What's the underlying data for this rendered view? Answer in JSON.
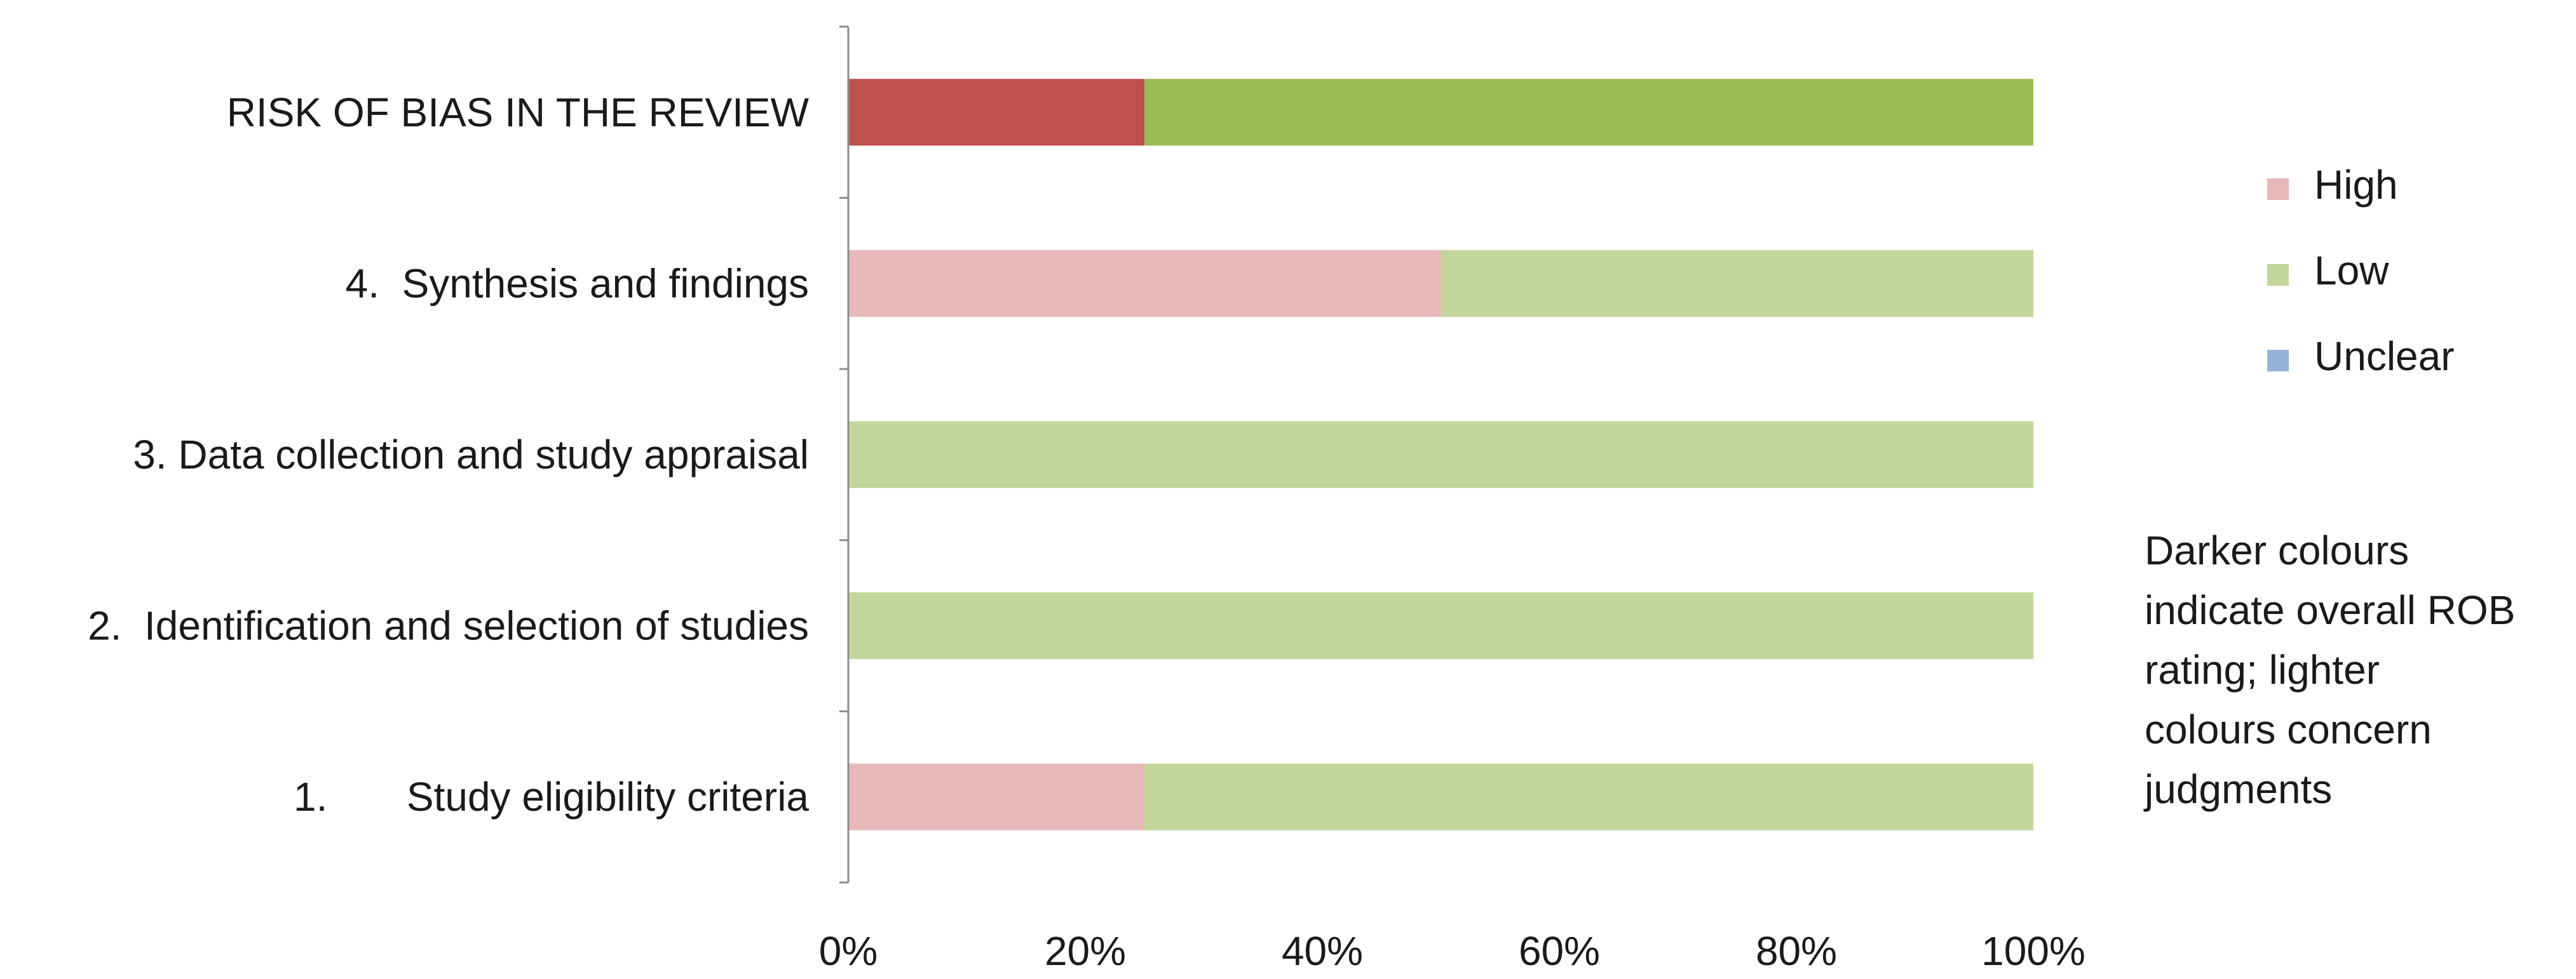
{
  "chart_data": {
    "type": "bar",
    "orientation": "horizontal",
    "stacked": true,
    "normalized_percent": true,
    "categories": [
      "RISK OF BIAS IN THE REVIEW",
      "4.  Synthesis and findings",
      "3. Data collection and study appraisal",
      "2.  Identification and selection of studies",
      "1.       Study eligibility criteria"
    ],
    "segments": [
      [
        {
          "rating": "High",
          "value": 25,
          "color": "#c0504d"
        },
        {
          "rating": "Low",
          "value": 75,
          "color": "#9bbb59"
        }
      ],
      [
        {
          "rating": "High",
          "value": 50,
          "color": "#e6b9b8"
        },
        {
          "rating": "Low",
          "value": 50,
          "color": "#c3d69b"
        }
      ],
      [
        {
          "rating": "Low",
          "value": 100,
          "color": "#c3d69b"
        }
      ],
      [
        {
          "rating": "Low",
          "value": 100,
          "color": "#c3d69b"
        }
      ],
      [
        {
          "rating": "High",
          "value": 25,
          "color": "#e6b9b8"
        },
        {
          "rating": "Low",
          "value": 75,
          "color": "#c3d69b"
        }
      ]
    ],
    "x_ticks": [
      "0%",
      "20%",
      "40%",
      "60%",
      "80%",
      "100%"
    ],
    "xlim": [
      0,
      100
    ],
    "legend": {
      "placement": "right",
      "items": [
        {
          "label": "High",
          "color": "#e6b9b8"
        },
        {
          "label": "Low",
          "color": "#c3d69b"
        },
        {
          "label": "Unclear",
          "color": "#95b3d7"
        }
      ]
    },
    "annotation_lines": [
      "Darker colours",
      "indicate overall ROB",
      "rating;  lighter",
      "colours concern",
      "judgments"
    ],
    "grid": false,
    "title": "",
    "xlabel": "",
    "ylabel": ""
  }
}
